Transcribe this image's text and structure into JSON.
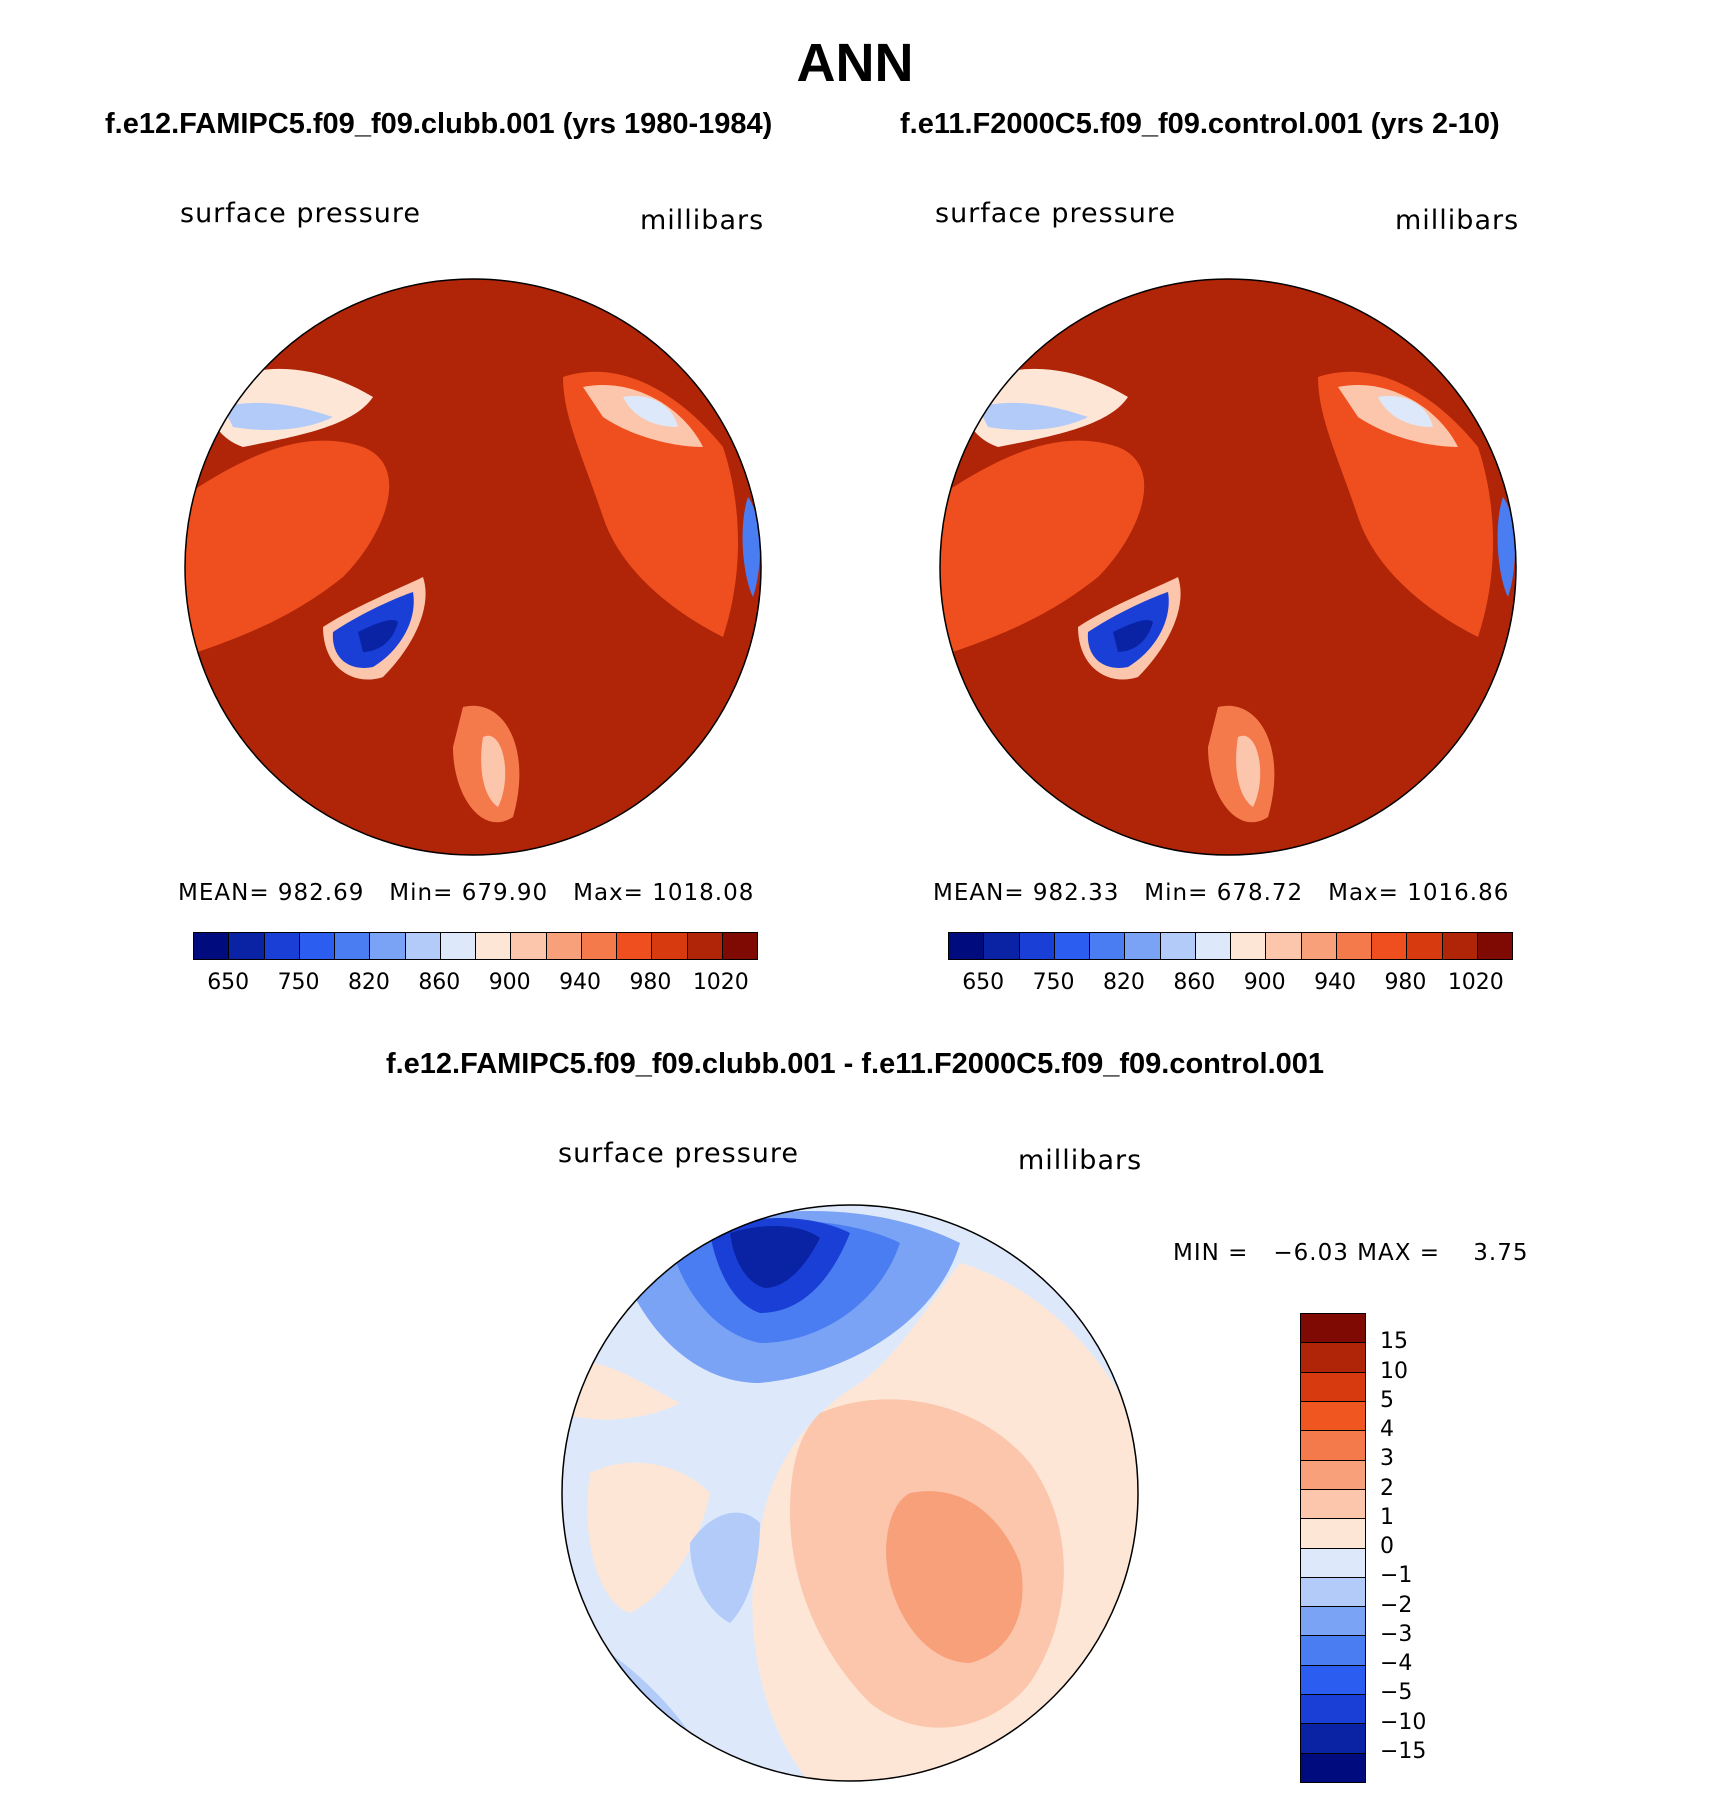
{
  "main_title": "ANN",
  "panels": {
    "left": {
      "case": "f.e12.FAMIPC5.f09_f09.clubb.001 (yrs 1980-1984)",
      "variable": "surface pressure",
      "units": "millibars",
      "stats": "MEAN= 982.69   Min= 679.90   Max= 1018.08"
    },
    "right": {
      "case": "f.e11.F2000C5.f09_f09.control.001 (yrs 2-10)",
      "variable": "surface pressure",
      "units": "millibars",
      "stats": "MEAN= 982.33   Min= 678.72   Max= 1016.86"
    },
    "diff": {
      "case": "f.e12.FAMIPC5.f09_f09.clubb.001 - f.e11.F2000C5.f09_f09.control.001",
      "variable": "surface pressure",
      "units": "millibars",
      "stats": "MIN =   −6.03 MAX =    3.75"
    }
  },
  "colorbar_abs": {
    "colors": [
      "#000c7d",
      "#0a23a5",
      "#1a3fd6",
      "#2b5ef0",
      "#4a7df2",
      "#7aa3f5",
      "#b2cbf8",
      "#dde9fb",
      "#fde6d6",
      "#fbc6ac",
      "#f8a07a",
      "#f47a4c",
      "#ef4f1e",
      "#d83a10",
      "#b02408",
      "#7f0a03"
    ],
    "labels": [
      "650",
      "750",
      "820",
      "860",
      "900",
      "940",
      "980",
      "1020"
    ]
  },
  "colorbar_diff": {
    "colors": [
      "#7f0a03",
      "#b02408",
      "#d83a10",
      "#f0561f",
      "#f47a4c",
      "#f8a07a",
      "#fbc6ac",
      "#fde6d6",
      "#dde9fb",
      "#b2cbf8",
      "#7aa3f5",
      "#4a7df2",
      "#2b5ef0",
      "#1a3fd6",
      "#0a23a5",
      "#000c7d"
    ],
    "labels": [
      "15",
      "10",
      "5",
      "4",
      "3",
      "2",
      "1",
      "0",
      "−1",
      "−2",
      "−3",
      "−4",
      "−5",
      "−10",
      "−15"
    ]
  }
}
